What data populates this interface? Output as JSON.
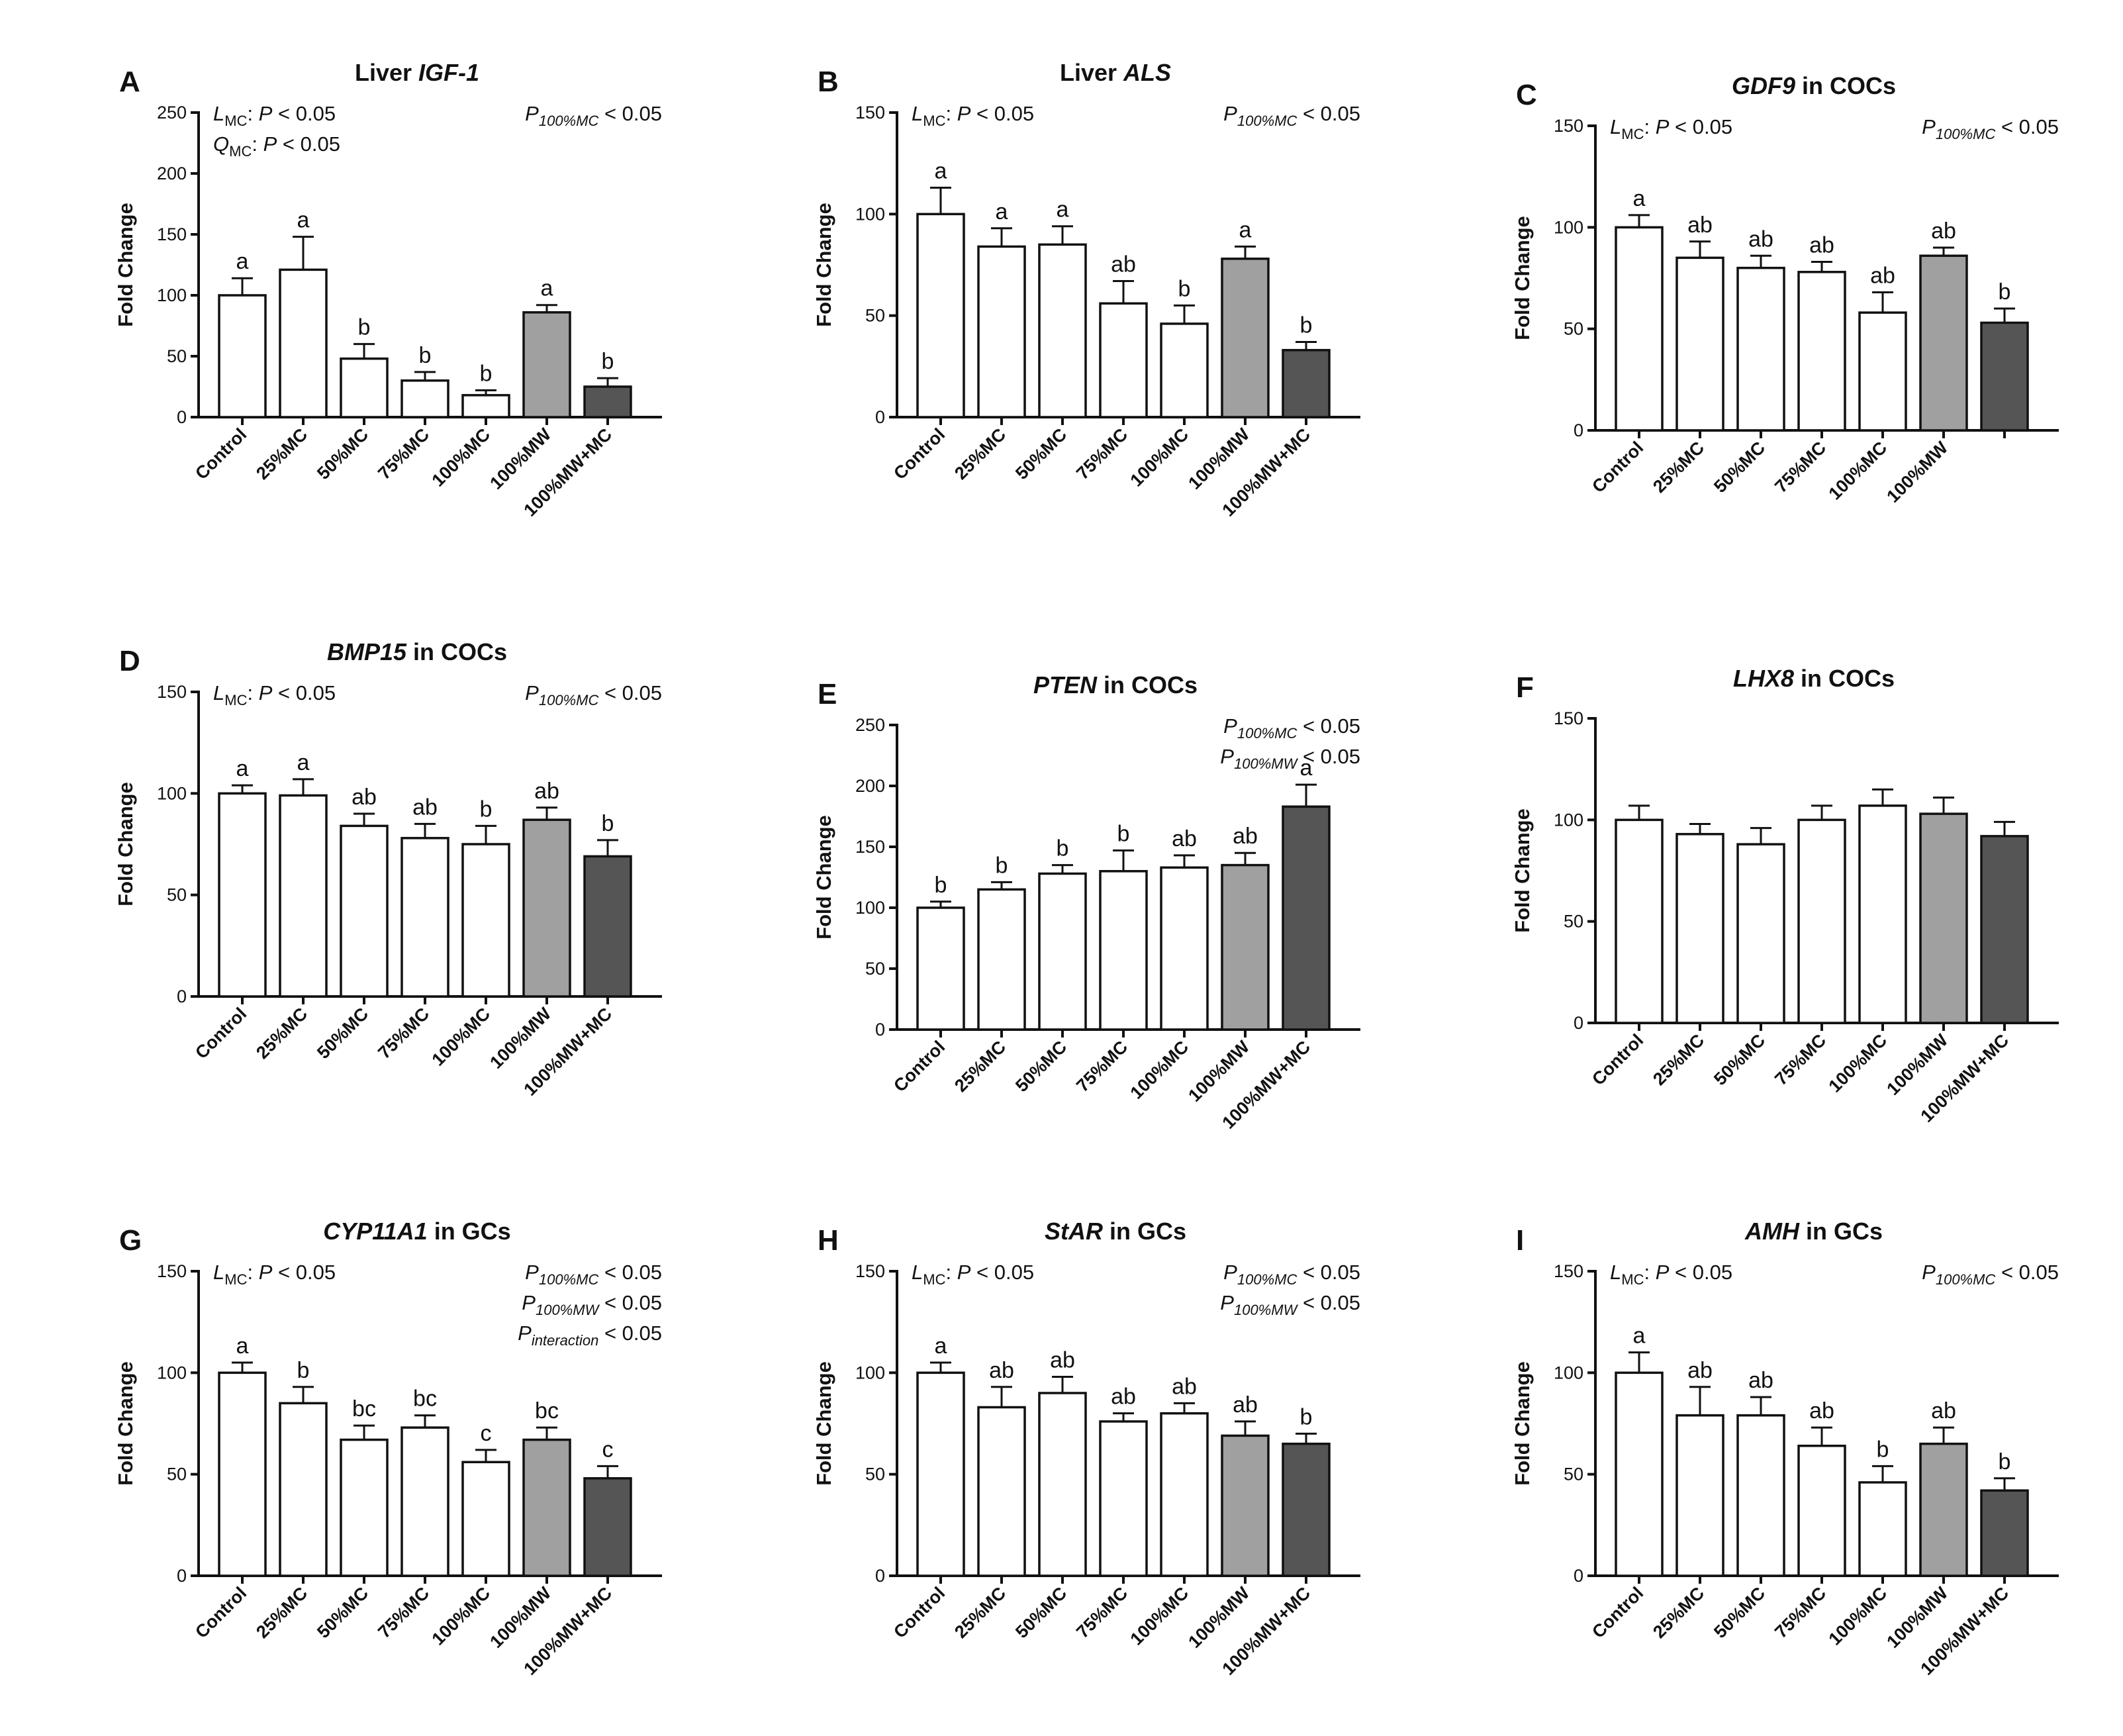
{
  "y_axis_label": "Fold Change",
  "colors": {
    "white": "#ffffff",
    "gray": "#a0a0a0",
    "dark": "#555555",
    "stroke": "#111111"
  },
  "chart_data": [
    {
      "id": "panel-a",
      "letter": "A",
      "type": "bar",
      "title_segments": [
        {
          "text": "Liver ",
          "italic": false
        },
        {
          "text": "IGF-1",
          "italic": true
        }
      ],
      "ylim": [
        0,
        250
      ],
      "yticks": [
        0,
        50,
        100,
        150,
        200,
        250
      ],
      "categories": [
        "Control",
        "25%MC",
        "50%MC",
        "75%MC",
        "100%MC",
        "100%MW",
        "100%MW+MC"
      ],
      "values": [
        100,
        121,
        48,
        30,
        18,
        86,
        25
      ],
      "errors": [
        14,
        27,
        12,
        7,
        4,
        6,
        7
      ],
      "letters": [
        "a",
        "a",
        "b",
        "b",
        "b",
        "a",
        "b"
      ],
      "fills": [
        "white",
        "white",
        "white",
        "white",
        "white",
        "gray",
        "dark"
      ],
      "stats_left": [
        [
          {
            "t": "L",
            "st": "i"
          },
          {
            "t": "MC",
            "st": "sub"
          },
          {
            "t": ": ",
            "st": "n"
          },
          {
            "t": "P",
            "st": "i"
          },
          {
            "t": " < 0.05",
            "st": "n"
          }
        ],
        [
          {
            "t": "Q",
            "st": "i"
          },
          {
            "t": "MC",
            "st": "sub"
          },
          {
            "t": ": ",
            "st": "n"
          },
          {
            "t": "P",
            "st": "i"
          },
          {
            "t": " < 0.05",
            "st": "n"
          }
        ]
      ],
      "stats_right": [
        [
          {
            "t": "P",
            "st": "i"
          },
          {
            "t": "100%MC",
            "st": "isub"
          },
          {
            "t": " < 0.05",
            "st": "n"
          }
        ]
      ]
    },
    {
      "id": "panel-b",
      "letter": "B",
      "type": "bar",
      "title_segments": [
        {
          "text": "Liver ",
          "italic": false
        },
        {
          "text": "ALS",
          "italic": true
        }
      ],
      "ylim": [
        0,
        150
      ],
      "yticks": [
        0,
        50,
        100,
        150
      ],
      "categories": [
        "Control",
        "25%MC",
        "50%MC",
        "75%MC",
        "100%MC",
        "100%MW",
        "100%MW+MC"
      ],
      "values": [
        100,
        84,
        85,
        56,
        46,
        78,
        33
      ],
      "errors": [
        13,
        9,
        9,
        11,
        9,
        6,
        4
      ],
      "letters": [
        "a",
        "a",
        "a",
        "ab",
        "b",
        "a",
        "b"
      ],
      "fills": [
        "white",
        "white",
        "white",
        "white",
        "white",
        "gray",
        "dark"
      ],
      "stats_left": [
        [
          {
            "t": "L",
            "st": "i"
          },
          {
            "t": "MC",
            "st": "sub"
          },
          {
            "t": ": ",
            "st": "n"
          },
          {
            "t": "P",
            "st": "i"
          },
          {
            "t": " < 0.05",
            "st": "n"
          }
        ]
      ],
      "stats_right": [
        [
          {
            "t": "P",
            "st": "i"
          },
          {
            "t": "100%MC",
            "st": "isub"
          },
          {
            "t": " < 0.05",
            "st": "n"
          }
        ]
      ]
    },
    {
      "id": "panel-c",
      "letter": "C",
      "type": "bar",
      "title_segments": [
        {
          "text": "GDF9",
          "italic": true
        },
        {
          "text": " in COCs",
          "italic": false
        }
      ],
      "ylim": [
        0,
        150
      ],
      "yticks": [
        0,
        50,
        100,
        150
      ],
      "categories": [
        "Control",
        "25%MC",
        "50%MC",
        "75%MC",
        "100%MC",
        "100%MW",
        ""
      ],
      "values": [
        100,
        85,
        80,
        78,
        58,
        86,
        53
      ],
      "errors": [
        6,
        8,
        6,
        5,
        10,
        4,
        7
      ],
      "letters": [
        "a",
        "ab",
        "ab",
        "ab",
        "ab",
        "ab",
        "b"
      ],
      "fills": [
        "white",
        "white",
        "white",
        "white",
        "white",
        "gray",
        "dark"
      ],
      "stats_left": [
        [
          {
            "t": "L",
            "st": "i"
          },
          {
            "t": "MC",
            "st": "sub"
          },
          {
            "t": ": ",
            "st": "n"
          },
          {
            "t": "P",
            "st": "i"
          },
          {
            "t": " < 0.05",
            "st": "n"
          }
        ]
      ],
      "stats_right": [
        [
          {
            "t": "P",
            "st": "i"
          },
          {
            "t": "100%MC",
            "st": "isub"
          },
          {
            "t": " < 0.05",
            "st": "n"
          }
        ]
      ]
    },
    {
      "id": "panel-d",
      "letter": "D",
      "type": "bar",
      "title_segments": [
        {
          "text": "BMP15",
          "italic": true
        },
        {
          "text": " in COCs",
          "italic": false
        }
      ],
      "ylim": [
        0,
        150
      ],
      "yticks": [
        0,
        50,
        100,
        150
      ],
      "categories": [
        "Control",
        "25%MC",
        "50%MC",
        "75%MC",
        "100%MC",
        "100%MW",
        "100%MW+MC"
      ],
      "values": [
        100,
        99,
        84,
        78,
        75,
        87,
        69
      ],
      "errors": [
        4,
        8,
        6,
        7,
        9,
        6,
        8
      ],
      "letters": [
        "a",
        "a",
        "ab",
        "ab",
        "b",
        "ab",
        "b"
      ],
      "fills": [
        "white",
        "white",
        "white",
        "white",
        "white",
        "gray",
        "dark"
      ],
      "stats_left": [
        [
          {
            "t": "L",
            "st": "i"
          },
          {
            "t": "MC",
            "st": "sub"
          },
          {
            "t": ": ",
            "st": "n"
          },
          {
            "t": "P",
            "st": "i"
          },
          {
            "t": " < 0.05",
            "st": "n"
          }
        ]
      ],
      "stats_right": [
        [
          {
            "t": "P",
            "st": "i"
          },
          {
            "t": "100%MC",
            "st": "isub"
          },
          {
            "t": " < 0.05",
            "st": "n"
          }
        ]
      ]
    },
    {
      "id": "panel-e",
      "letter": "E",
      "type": "bar",
      "title_segments": [
        {
          "text": "PTEN",
          "italic": true
        },
        {
          "text": " in COCs",
          "italic": false
        }
      ],
      "ylim": [
        0,
        250
      ],
      "yticks": [
        0,
        50,
        100,
        150,
        200,
        250
      ],
      "categories": [
        "Control",
        "25%MC",
        "50%MC",
        "75%MC",
        "100%MC",
        "100%MW",
        "100%MW+MC"
      ],
      "values": [
        100,
        115,
        128,
        130,
        133,
        135,
        183
      ],
      "errors": [
        5,
        6,
        7,
        17,
        10,
        10,
        18
      ],
      "letters": [
        "b",
        "b",
        "b",
        "b",
        "ab",
        "ab",
        "a"
      ],
      "fills": [
        "white",
        "white",
        "white",
        "white",
        "white",
        "gray",
        "dark"
      ],
      "stats_left": [],
      "stats_right": [
        [
          {
            "t": "P",
            "st": "i"
          },
          {
            "t": "100%MC",
            "st": "isub"
          },
          {
            "t": " < 0.05",
            "st": "n"
          }
        ],
        [
          {
            "t": "P",
            "st": "i"
          },
          {
            "t": "100%MW",
            "st": "isub"
          },
          {
            "t": " < 0.05",
            "st": "n"
          }
        ]
      ]
    },
    {
      "id": "panel-f",
      "letter": "F",
      "type": "bar",
      "title_segments": [
        {
          "text": "LHX8",
          "italic": true
        },
        {
          "text": " in COCs",
          "italic": false
        }
      ],
      "ylim": [
        0,
        150
      ],
      "yticks": [
        0,
        50,
        100,
        150
      ],
      "categories": [
        "Control",
        "25%MC",
        "50%MC",
        "75%MC",
        "100%MC",
        "100%MW",
        "100%MW+MC"
      ],
      "values": [
        100,
        93,
        88,
        100,
        107,
        103,
        92
      ],
      "errors": [
        7,
        5,
        8,
        7,
        8,
        8,
        7
      ],
      "letters": [
        "",
        "",
        "",
        "",
        "",
        "",
        ""
      ],
      "fills": [
        "white",
        "white",
        "white",
        "white",
        "white",
        "gray",
        "dark"
      ],
      "stats_left": [],
      "stats_right": []
    },
    {
      "id": "panel-g",
      "letter": "G",
      "type": "bar",
      "title_segments": [
        {
          "text": "CYP11A1",
          "italic": true
        },
        {
          "text": " in GCs",
          "italic": false
        }
      ],
      "ylim": [
        0,
        150
      ],
      "yticks": [
        0,
        50,
        100,
        150
      ],
      "categories": [
        "Control",
        "25%MC",
        "50%MC",
        "75%MC",
        "100%MC",
        "100%MW",
        "100%MW+MC"
      ],
      "values": [
        100,
        85,
        67,
        73,
        56,
        67,
        48
      ],
      "errors": [
        5,
        8,
        7,
        6,
        6,
        6,
        6
      ],
      "letters": [
        "a",
        "b",
        "bc",
        "bc",
        "c",
        "bc",
        "c"
      ],
      "fills": [
        "white",
        "white",
        "white",
        "white",
        "white",
        "gray",
        "dark"
      ],
      "stats_left": [
        [
          {
            "t": "L",
            "st": "i"
          },
          {
            "t": "MC",
            "st": "sub"
          },
          {
            "t": ": ",
            "st": "n"
          },
          {
            "t": "P",
            "st": "i"
          },
          {
            "t": " < 0.05",
            "st": "n"
          }
        ]
      ],
      "stats_right": [
        [
          {
            "t": "P",
            "st": "i"
          },
          {
            "t": "100%MC",
            "st": "isub"
          },
          {
            "t": " < 0.05",
            "st": "n"
          }
        ],
        [
          {
            "t": "P",
            "st": "i"
          },
          {
            "t": "100%MW",
            "st": "isub"
          },
          {
            "t": " < 0.05",
            "st": "n"
          }
        ],
        [
          {
            "t": "P",
            "st": "i"
          },
          {
            "t": "interaction",
            "st": "isub"
          },
          {
            "t": " < 0.05",
            "st": "n"
          }
        ]
      ]
    },
    {
      "id": "panel-h",
      "letter": "H",
      "type": "bar",
      "title_segments": [
        {
          "text": "StAR",
          "italic": true
        },
        {
          "text": " in GCs",
          "italic": false
        }
      ],
      "ylim": [
        0,
        150
      ],
      "yticks": [
        0,
        50,
        100,
        150
      ],
      "categories": [
        "Control",
        "25%MC",
        "50%MC",
        "75%MC",
        "100%MC",
        "100%MW",
        "100%MW+MC"
      ],
      "values": [
        100,
        83,
        90,
        76,
        80,
        69,
        65
      ],
      "errors": [
        5,
        10,
        8,
        4,
        5,
        7,
        5
      ],
      "letters": [
        "a",
        "ab",
        "ab",
        "ab",
        "ab",
        "ab",
        "b"
      ],
      "fills": [
        "white",
        "white",
        "white",
        "white",
        "white",
        "gray",
        "dark"
      ],
      "stats_left": [
        [
          {
            "t": "L",
            "st": "i"
          },
          {
            "t": "MC",
            "st": "sub"
          },
          {
            "t": ": ",
            "st": "n"
          },
          {
            "t": "P",
            "st": "i"
          },
          {
            "t": " < 0.05",
            "st": "n"
          }
        ]
      ],
      "stats_right": [
        [
          {
            "t": "P",
            "st": "i"
          },
          {
            "t": "100%MC",
            "st": "isub"
          },
          {
            "t": " < 0.05",
            "st": "n"
          }
        ],
        [
          {
            "t": "P",
            "st": "i"
          },
          {
            "t": "100%MW",
            "st": "isub"
          },
          {
            "t": " < 0.05",
            "st": "n"
          }
        ]
      ]
    },
    {
      "id": "panel-i",
      "letter": "I",
      "type": "bar",
      "title_segments": [
        {
          "text": "AMH",
          "italic": true
        },
        {
          "text": " in GCs",
          "italic": false
        }
      ],
      "ylim": [
        0,
        150
      ],
      "yticks": [
        0,
        50,
        100,
        150
      ],
      "categories": [
        "Control",
        "25%MC",
        "50%MC",
        "75%MC",
        "100%MC",
        "100%MW",
        "100%MW+MC"
      ],
      "values": [
        100,
        79,
        79,
        64,
        46,
        65,
        42
      ],
      "errors": [
        10,
        14,
        9,
        9,
        8,
        8,
        6
      ],
      "letters": [
        "a",
        "ab",
        "ab",
        "ab",
        "b",
        "ab",
        "b"
      ],
      "fills": [
        "white",
        "white",
        "white",
        "white",
        "white",
        "gray",
        "dark"
      ],
      "stats_left": [
        [
          {
            "t": "L",
            "st": "i"
          },
          {
            "t": "MC",
            "st": "sub"
          },
          {
            "t": ": ",
            "st": "n"
          },
          {
            "t": "P",
            "st": "i"
          },
          {
            "t": " < 0.05",
            "st": "n"
          }
        ]
      ],
      "stats_right": [
        [
          {
            "t": "P",
            "st": "i"
          },
          {
            "t": "100%MC",
            "st": "isub"
          },
          {
            "t": " < 0.05",
            "st": "n"
          }
        ]
      ]
    }
  ]
}
